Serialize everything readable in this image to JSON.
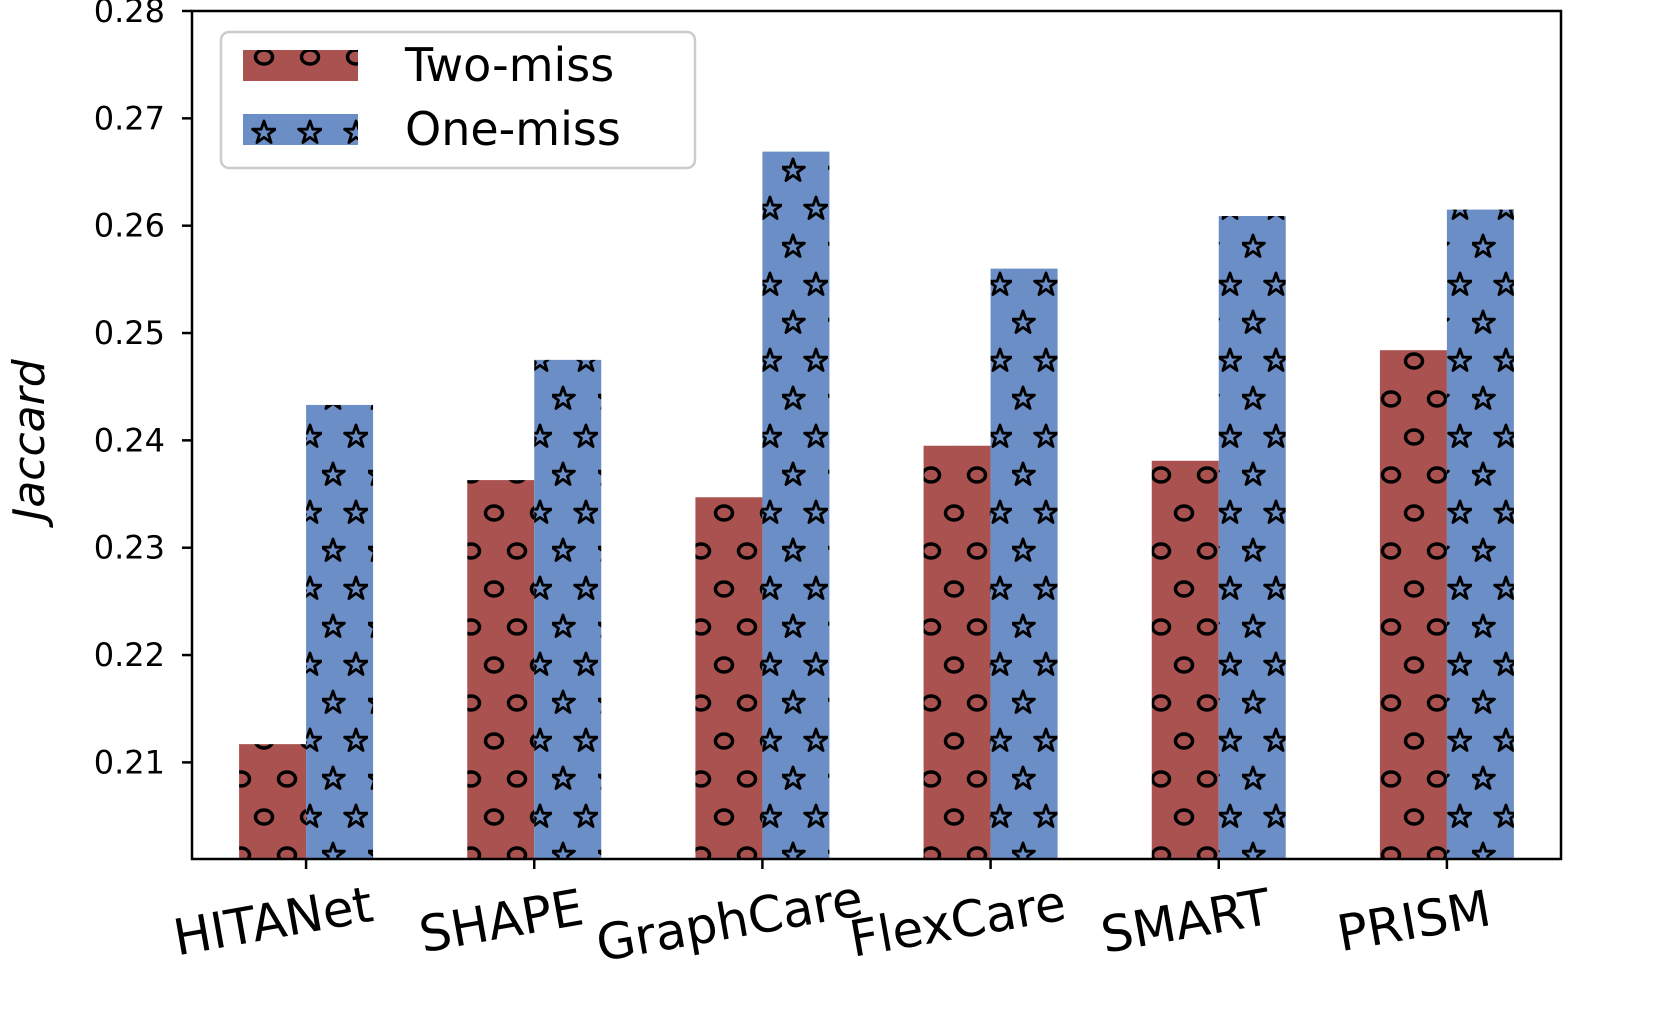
{
  "colors": {
    "two_miss": "#a9524f",
    "one_miss": "#6b8ec6",
    "hatch": "#000000"
  },
  "chart_data": {
    "type": "bar",
    "title": "",
    "xlabel": "",
    "ylabel": "Jaccard",
    "categories": [
      "HITANet",
      "SHAPE",
      "GraphCare",
      "FlexCare",
      "SMART",
      "PRISM"
    ],
    "series": [
      {
        "name": "Two-miss",
        "color": "#a9524f",
        "hatch": "circles",
        "values": [
          0.2117,
          0.2363,
          0.2347,
          0.2395,
          0.2381,
          0.2484
        ]
      },
      {
        "name": "One-miss",
        "color": "#6b8ec6",
        "hatch": "stars",
        "values": [
          0.2433,
          0.2475,
          0.2669,
          0.256,
          0.2609,
          0.2615
        ]
      }
    ],
    "ylim": [
      0.201,
      0.28
    ],
    "yticks": [
      "0.21",
      "0.22",
      "0.23",
      "0.24",
      "0.25",
      "0.26",
      "0.27",
      "0.28"
    ],
    "legend_position": "top-left",
    "grid": false
  }
}
